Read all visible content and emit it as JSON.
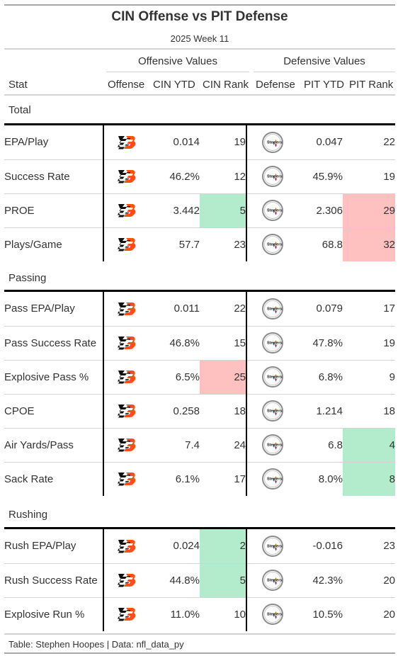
{
  "title": "CIN Offense vs PIT Defense",
  "subtitle": "2025 Week 11",
  "spanners": {
    "offense": "Offensive Values",
    "defense": "Defensive Values"
  },
  "columns": [
    "Stat",
    "Offense",
    "CIN YTD",
    "CIN Rank",
    "Defense",
    "PIT YTD",
    "PIT Rank"
  ],
  "icons": {
    "offense_logo": "bengals-logo-icon",
    "defense_logo": "steelers-logo-icon"
  },
  "colors": {
    "good_rank": "#b3ebcd",
    "bad_rank": "#ffc0c0",
    "bengals_orange": "#fb4f14",
    "steelers_gold": "#ffb612",
    "steelers_red": "#c60c30",
    "steelers_blue": "#00539b"
  },
  "groups": [
    {
      "name": "Total",
      "rows": [
        {
          "stat": "EPA/Play",
          "cin_ytd": "0.014",
          "cin_rank": "19",
          "cin_hl": "",
          "pit_ytd": "0.047",
          "pit_rank": "22",
          "pit_hl": ""
        },
        {
          "stat": "Success Rate",
          "cin_ytd": "46.2%",
          "cin_rank": "12",
          "cin_hl": "",
          "pit_ytd": "45.9%",
          "pit_rank": "19",
          "pit_hl": ""
        },
        {
          "stat": "PROE",
          "cin_ytd": "3.442",
          "cin_rank": "5",
          "cin_hl": "green",
          "pit_ytd": "2.306",
          "pit_rank": "29",
          "pit_hl": "red"
        },
        {
          "stat": "Plays/Game",
          "cin_ytd": "57.7",
          "cin_rank": "23",
          "cin_hl": "",
          "pit_ytd": "68.8",
          "pit_rank": "32",
          "pit_hl": "red"
        }
      ]
    },
    {
      "name": "Passing",
      "rows": [
        {
          "stat": "Pass EPA/Play",
          "cin_ytd": "0.011",
          "cin_rank": "22",
          "cin_hl": "",
          "pit_ytd": "0.079",
          "pit_rank": "17",
          "pit_hl": ""
        },
        {
          "stat": "Pass Success Rate",
          "cin_ytd": "46.8%",
          "cin_rank": "15",
          "cin_hl": "",
          "pit_ytd": "47.8%",
          "pit_rank": "19",
          "pit_hl": ""
        },
        {
          "stat": "Explosive Pass %",
          "cin_ytd": "6.5%",
          "cin_rank": "25",
          "cin_hl": "red",
          "pit_ytd": "6.8%",
          "pit_rank": "9",
          "pit_hl": ""
        },
        {
          "stat": "CPOE",
          "cin_ytd": "0.258",
          "cin_rank": "18",
          "cin_hl": "",
          "pit_ytd": "1.214",
          "pit_rank": "18",
          "pit_hl": ""
        },
        {
          "stat": "Air Yards/Pass",
          "cin_ytd": "7.4",
          "cin_rank": "24",
          "cin_hl": "",
          "pit_ytd": "6.8",
          "pit_rank": "4",
          "pit_hl": "green"
        },
        {
          "stat": "Sack Rate",
          "cin_ytd": "6.1%",
          "cin_rank": "17",
          "cin_hl": "",
          "pit_ytd": "8.0%",
          "pit_rank": "8",
          "pit_hl": "green"
        }
      ]
    },
    {
      "name": "Rushing",
      "rows": [
        {
          "stat": "Rush EPA/Play",
          "cin_ytd": "0.024",
          "cin_rank": "2",
          "cin_hl": "green",
          "pit_ytd": "-0.016",
          "pit_rank": "23",
          "pit_hl": ""
        },
        {
          "stat": "Rush Success Rate",
          "cin_ytd": "44.8%",
          "cin_rank": "5",
          "cin_hl": "green",
          "pit_ytd": "42.3%",
          "pit_rank": "20",
          "pit_hl": ""
        },
        {
          "stat": "Explosive Run %",
          "cin_ytd": "11.0%",
          "cin_rank": "10",
          "cin_hl": "",
          "pit_ytd": "10.5%",
          "pit_rank": "20",
          "pit_hl": ""
        }
      ]
    }
  ],
  "footer": "Table: Stephen Hoopes | Data: nfl_data_py"
}
